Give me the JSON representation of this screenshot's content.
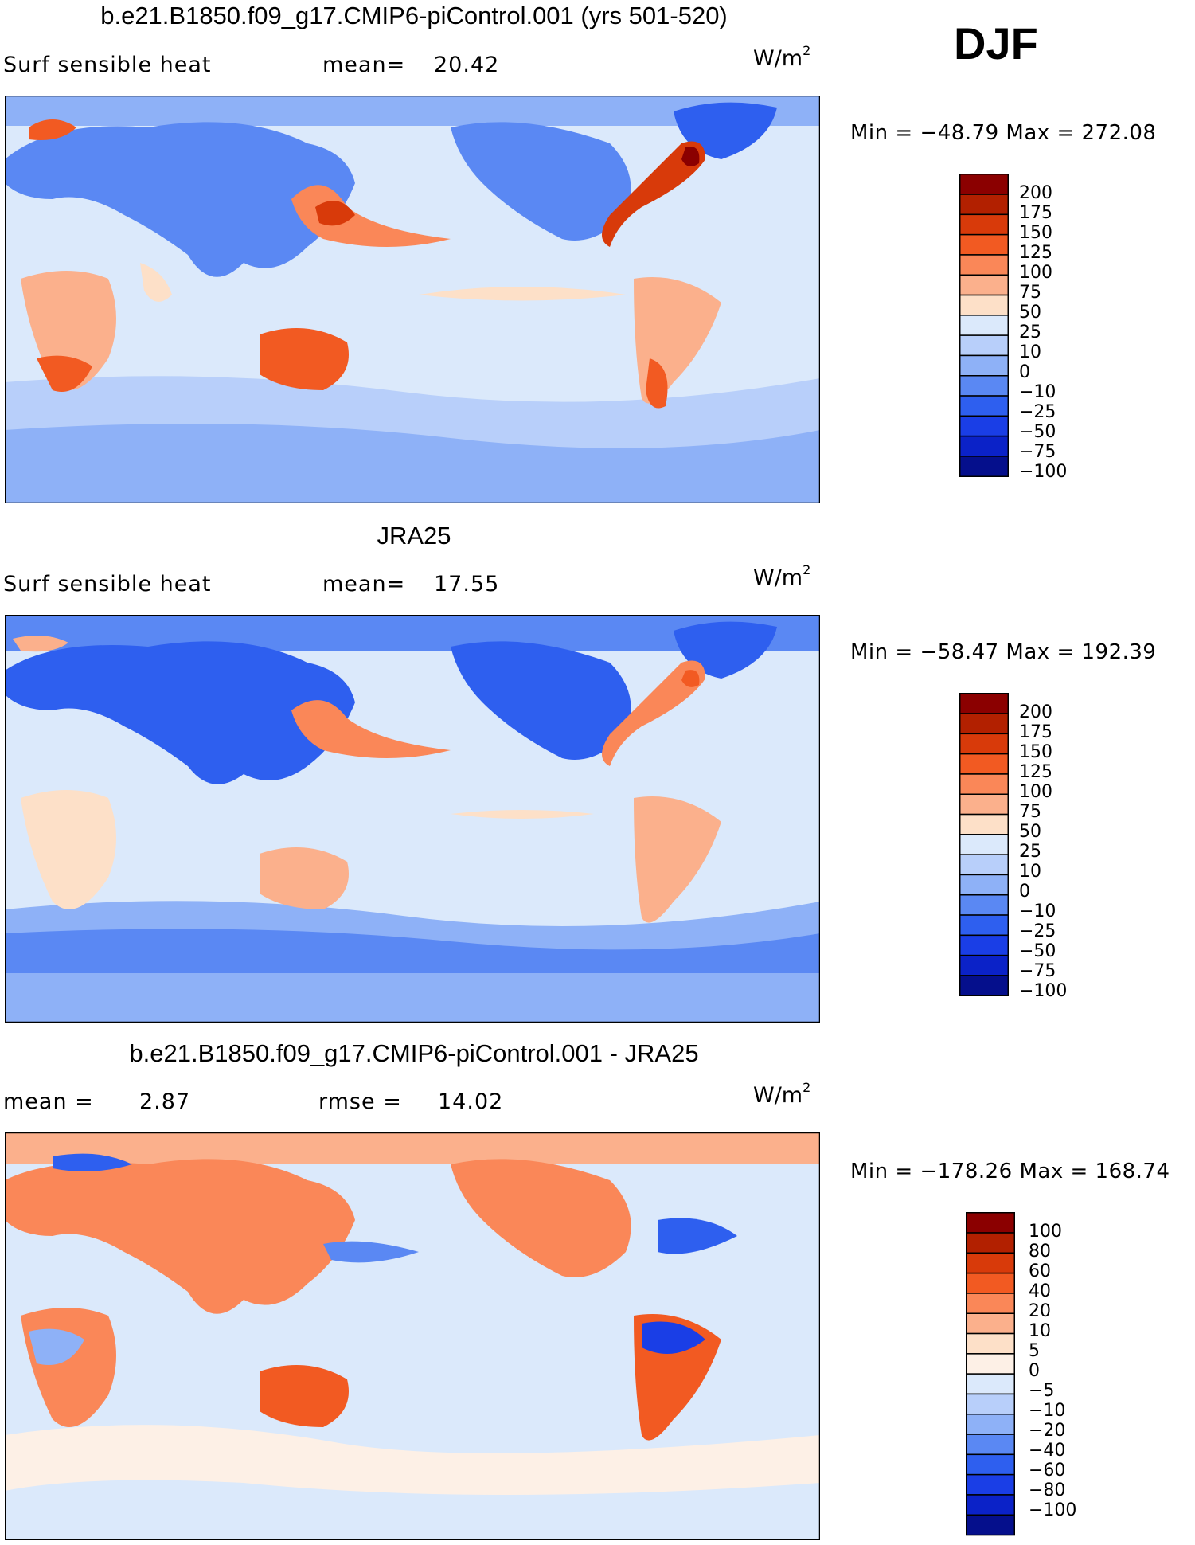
{
  "season": "DJF",
  "units_text": "W/m",
  "units_exp": "2",
  "panels": [
    {
      "title": "b.e21.B1850.f09_g17.CMIP6-piControl.001 (yrs 501-520)",
      "variable": "Surf sensible heat",
      "stat_label": "mean=",
      "stat_value": "20.42",
      "minmax": "Min = −48.79  Max = 272.08",
      "colorbar_levels": [
        "200",
        "175",
        "150",
        "125",
        "100",
        "75",
        "50",
        "25",
        "10",
        "0",
        "−10",
        "−25",
        "−50",
        "−75",
        "−100"
      ]
    },
    {
      "title": "JRA25",
      "variable": "Surf sensible heat",
      "stat_label": "mean=",
      "stat_value": "17.55",
      "minmax": "Min = −58.47  Max = 192.39",
      "colorbar_levels": [
        "200",
        "175",
        "150",
        "125",
        "100",
        "75",
        "50",
        "25",
        "10",
        "0",
        "−10",
        "−25",
        "−50",
        "−75",
        "−100"
      ]
    },
    {
      "title": "b.e21.B1850.f09_g17.CMIP6-piControl.001 - JRA25",
      "stat1_label": "mean =",
      "stat1_value": "2.87",
      "stat2_label": "rmse =",
      "stat2_value": "14.02",
      "minmax": "Min = −178.26  Max = 168.74",
      "colorbar_levels": [
        "100",
        "80",
        "60",
        "40",
        "20",
        "10",
        "5",
        "0",
        "−5",
        "−10",
        "−20",
        "−40",
        "−60",
        "−80",
        "−100"
      ]
    }
  ],
  "colors": {
    "mean_palette": [
      "#8b0000",
      "#b22000",
      "#d83a0a",
      "#f25a22",
      "#fa8758",
      "#fbb08c",
      "#fde0c8",
      "#dbe9fb",
      "#b8cffa",
      "#8eb1f7",
      "#5a88f3",
      "#2e5fef",
      "#1a3ee6",
      "#0b22c8",
      "#050f8c"
    ],
    "diff_palette": [
      "#8b0000",
      "#b22000",
      "#d83a0a",
      "#f25a22",
      "#fa8758",
      "#fbb08c",
      "#fde0c8",
      "#fdf0e6",
      "#dbe9fb",
      "#b8cffa",
      "#8eb1f7",
      "#5a88f3",
      "#2e5fef",
      "#1a3ee6",
      "#0b22c8",
      "#050f8c"
    ]
  }
}
